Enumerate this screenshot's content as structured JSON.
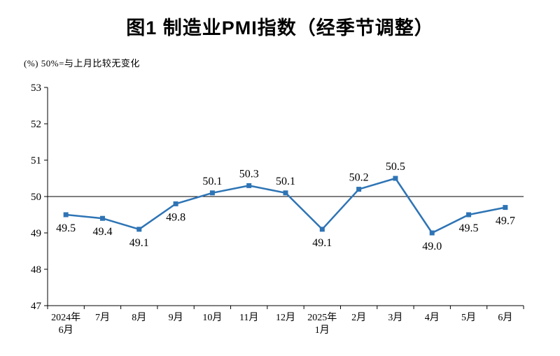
{
  "title": "图1  制造业PMI指数（经季节调整）",
  "note": "(%)  50%=与上月比较无变化",
  "chart_data": {
    "type": "line",
    "title": "图1  制造业PMI指数（经季节调整）",
    "subtitle_note": "(%)  50%=与上月比较无变化",
    "categories": [
      "2024年\n6月",
      "7月",
      "8月",
      "9月",
      "10月",
      "11月",
      "12月",
      "2025年\n1月",
      "2月",
      "3月",
      "4月",
      "5月",
      "6月"
    ],
    "values": [
      49.5,
      49.4,
      49.1,
      49.8,
      50.1,
      50.3,
      50.1,
      49.1,
      50.2,
      50.5,
      49.0,
      49.5,
      49.7
    ],
    "data_labels": [
      "49.5",
      "49.4",
      "49.1",
      "49.8",
      "50.1",
      "50.3",
      "50.1",
      "49.1",
      "50.2",
      "50.5",
      "49.0",
      "49.5",
      "49.7"
    ],
    "ylim": [
      47,
      53
    ],
    "ytick_step": 1,
    "yticks": [
      47,
      48,
      49,
      50,
      51,
      52,
      53
    ],
    "reference_line": 50,
    "line_color": "#2E74B5",
    "axis_color": "#000000",
    "marker": "square",
    "grid": false,
    "legend": "none"
  }
}
